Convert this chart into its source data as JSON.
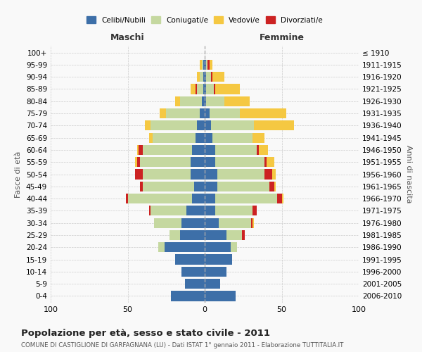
{
  "age_groups": [
    "0-4",
    "5-9",
    "10-14",
    "15-19",
    "20-24",
    "25-29",
    "30-34",
    "35-39",
    "40-44",
    "45-49",
    "50-54",
    "55-59",
    "60-64",
    "65-69",
    "70-74",
    "75-79",
    "80-84",
    "85-89",
    "90-94",
    "95-99",
    "100+"
  ],
  "birth_years": [
    "2006-2010",
    "2001-2005",
    "1996-2000",
    "1991-1995",
    "1986-1990",
    "1981-1985",
    "1976-1980",
    "1971-1975",
    "1966-1970",
    "1961-1965",
    "1956-1960",
    "1951-1955",
    "1946-1950",
    "1941-1945",
    "1936-1940",
    "1931-1935",
    "1926-1930",
    "1921-1925",
    "1916-1920",
    "1911-1915",
    "≤ 1910"
  ],
  "colors": {
    "celibi": "#3d6fa8",
    "coniugati": "#c5d8a0",
    "vedovi": "#f5c842",
    "divorziati": "#cc2222"
  },
  "maschi": {
    "celibi": [
      22,
      13,
      15,
      19,
      26,
      16,
      15,
      12,
      8,
      7,
      9,
      9,
      8,
      6,
      5,
      3,
      2,
      1,
      1,
      1,
      0
    ],
    "coniugati": [
      0,
      0,
      0,
      0,
      4,
      7,
      18,
      23,
      42,
      33,
      31,
      33,
      32,
      28,
      30,
      22,
      14,
      4,
      2,
      1,
      0
    ],
    "vedovi": [
      0,
      0,
      0,
      0,
      0,
      0,
      0,
      0,
      0,
      0,
      0,
      1,
      1,
      2,
      4,
      4,
      3,
      3,
      2,
      1,
      0
    ],
    "divorziati": [
      0,
      0,
      0,
      0,
      0,
      0,
      0,
      1,
      1,
      2,
      5,
      2,
      3,
      0,
      0,
      0,
      0,
      1,
      0,
      0,
      0
    ]
  },
  "femmine": {
    "celibi": [
      20,
      10,
      14,
      18,
      17,
      14,
      9,
      7,
      7,
      8,
      8,
      7,
      7,
      5,
      4,
      3,
      1,
      1,
      1,
      1,
      0
    ],
    "coniugati": [
      0,
      0,
      0,
      0,
      4,
      10,
      21,
      24,
      40,
      34,
      31,
      32,
      27,
      26,
      28,
      20,
      12,
      5,
      3,
      1,
      0
    ],
    "vedovi": [
      0,
      0,
      0,
      0,
      0,
      0,
      1,
      0,
      1,
      1,
      2,
      5,
      6,
      8,
      26,
      30,
      16,
      16,
      8,
      2,
      0
    ],
    "divorziati": [
      0,
      0,
      0,
      0,
      0,
      2,
      1,
      3,
      3,
      3,
      5,
      1,
      1,
      0,
      0,
      0,
      0,
      1,
      1,
      1,
      0
    ]
  },
  "xlim": 100,
  "title": "Popolazione per età, sesso e stato civile - 2011",
  "subtitle": "COMUNE DI CASTIGLIONE DI GARFAGNANA (LU) - Dati ISTAT 1° gennaio 2011 - Elaborazione TUTTITALIA.IT",
  "xlabel_left": "Maschi",
  "xlabel_right": "Femmine",
  "ylabel_left": "Fasce di età",
  "ylabel_right": "Anni di nascita",
  "legend_labels": [
    "Celibi/Nubili",
    "Coniugati/e",
    "Vedovi/e",
    "Divorziati/e"
  ],
  "bg_color": "#f9f9f9",
  "grid_color": "#cccccc"
}
